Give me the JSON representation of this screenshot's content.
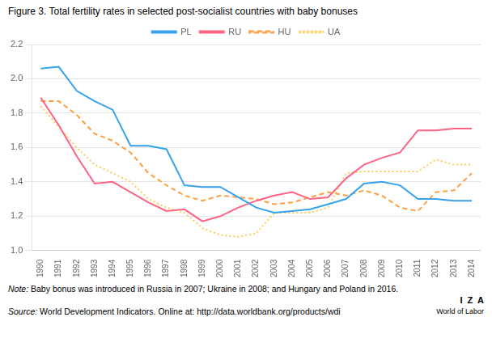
{
  "chart_data": {
    "type": "line",
    "title": "Figure 3. Total fertility rates in selected post-socialist countries with baby bonuses",
    "x": [
      1990,
      1991,
      1992,
      1993,
      1994,
      1995,
      1996,
      1997,
      1998,
      1999,
      2000,
      2001,
      2002,
      2003,
      2004,
      2005,
      2006,
      2007,
      2008,
      2009,
      2010,
      2011,
      2012,
      2013,
      2014
    ],
    "series": [
      {
        "name": "PL",
        "line_style": "solid",
        "values": [
          2.06,
          2.07,
          1.93,
          1.87,
          1.82,
          1.61,
          1.61,
          1.59,
          1.38,
          1.37,
          1.37,
          1.31,
          1.25,
          1.22,
          1.23,
          1.24,
          1.27,
          1.3,
          1.39,
          1.4,
          1.38,
          1.3,
          1.3,
          1.29,
          1.29
        ]
      },
      {
        "name": "RU",
        "line_style": "solid",
        "values": [
          1.89,
          1.73,
          1.55,
          1.39,
          1.4,
          1.34,
          1.28,
          1.23,
          1.24,
          1.17,
          1.2,
          1.25,
          1.29,
          1.32,
          1.34,
          1.3,
          1.31,
          1.42,
          1.5,
          1.54,
          1.57,
          1.7,
          1.7,
          1.71,
          1.71
        ]
      },
      {
        "name": "HU",
        "line_style": "dashed",
        "values": [
          1.87,
          1.87,
          1.79,
          1.68,
          1.64,
          1.57,
          1.45,
          1.38,
          1.32,
          1.29,
          1.32,
          1.31,
          1.3,
          1.27,
          1.28,
          1.31,
          1.34,
          1.32,
          1.35,
          1.32,
          1.25,
          1.23,
          1.34,
          1.35,
          1.45
        ]
      },
      {
        "name": "UA",
        "line_style": "dotted",
        "values": [
          1.84,
          1.72,
          1.6,
          1.5,
          1.45,
          1.4,
          1.3,
          1.25,
          1.22,
          1.13,
          1.09,
          1.08,
          1.1,
          1.22,
          1.22,
          1.22,
          1.25,
          1.45,
          1.46,
          1.46,
          1.46,
          1.46,
          1.53,
          1.5,
          1.5
        ]
      }
    ],
    "xlim": [
      1989.5,
      2014.5
    ],
    "xticks": [
      1990,
      1991,
      1992,
      1993,
      1994,
      1995,
      1996,
      1997,
      1998,
      1999,
      2000,
      2001,
      2002,
      2003,
      2004,
      2005,
      2006,
      2007,
      2008,
      2009,
      2010,
      2011,
      2012,
      2013,
      2014
    ],
    "ylim": [
      1.0,
      2.2
    ],
    "yticks": [
      {
        "value": 1.0,
        "label": "1.0"
      },
      1.2,
      1.4,
      1.6,
      1.8,
      {
        "value": 2.0,
        "label": "2.0"
      },
      2.2
    ],
    "grid": "y",
    "legend": "top",
    "annotations": [
      "Note: Baby bonus was introduced in Russia in 2007; Ukraine in 2008; and Hungary and Poland in 2016.",
      "Source: World Development Indicators. Online at: http://data.worldbank.org/products/wdi",
      "I  Z  A",
      "World of Labor"
    ]
  }
}
